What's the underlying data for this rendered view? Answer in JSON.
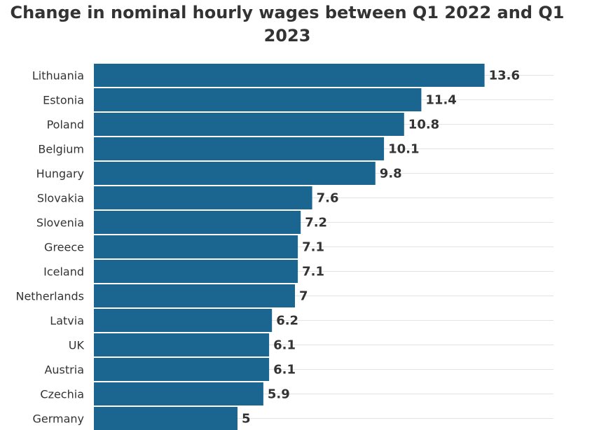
{
  "chart_data": {
    "type": "bar",
    "orientation": "horizontal",
    "title": "Change in nominal hourly wages between Q1 2022 and Q1 2023",
    "categories": [
      "Lithuania",
      "Estonia",
      "Poland",
      "Belgium",
      "Hungary",
      "Slovakia",
      "Slovenia",
      "Greece",
      "Iceland",
      "Netherlands",
      "Latvia",
      "UK",
      "Austria",
      "Czechia",
      "Germany"
    ],
    "values": [
      13.6,
      11.4,
      10.8,
      10.1,
      9.8,
      7.6,
      7.2,
      7.1,
      7.1,
      7,
      6.2,
      6.1,
      6.1,
      5.9,
      5
    ],
    "value_labels": [
      "13.6",
      "11.4",
      "10.8",
      "10.1",
      "9.8",
      "7.6",
      "7.2",
      "7.1",
      "7.1",
      "7",
      "6.2",
      "6.1",
      "6.1",
      "5.9",
      "5"
    ],
    "xlim": [
      0,
      16
    ],
    "grid": true,
    "colors": {
      "bar": "#1b6591",
      "grid": "#e3e3e3",
      "text": "#333333"
    }
  }
}
